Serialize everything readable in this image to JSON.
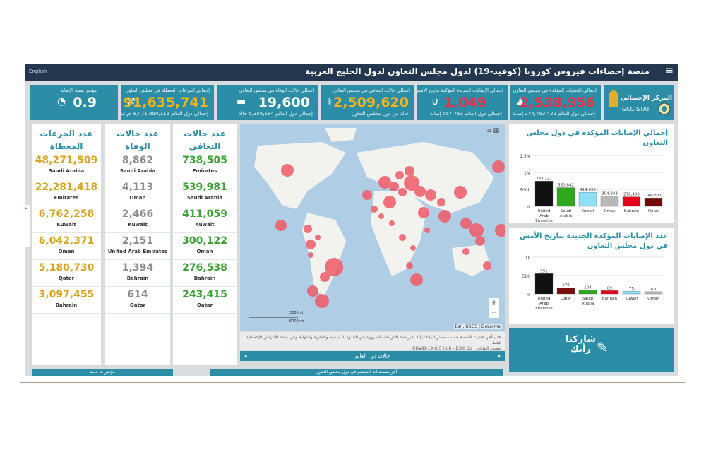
{
  "header": {
    "title": "منصة إحصاءات فيروس كورونا (كوفيد-19) لدول مجلس التعاون لدول الخليج العربية",
    "lang_link": "English"
  },
  "cards": [
    {
      "caption": "إجمالي الإصابات المؤكدة في مجلس التعاون",
      "value": "2,538,956",
      "sub": "إجمالي دول العالم 274,753,422 إصابة",
      "icon": "person-icon",
      "color": "red"
    },
    {
      "caption": "إجمالي الإصابات الجديدة المؤكدة بتاريخ الأمس",
      "value": "1,049",
      "sub": "إجمالي دول العالم 557,763 إصابة",
      "icon": "stethoscope-icon",
      "color": "red"
    },
    {
      "caption": "إجمالي حالات التعافي في مجلس التعاون",
      "value": "2,509,620",
      "sub": "حالة من دول مجلس التعاون",
      "icon": "recovery-icon",
      "color": "gold"
    },
    {
      "caption": "إجمالي حالات الوفاة في مجلس التعاون",
      "value": "19,600",
      "sub": "إجمالي دول العالم 5,356,184 حالة",
      "icon": "bed-icon",
      "color": "white"
    },
    {
      "caption": "إجمالي الجرعات المعطاة في مجلس التعاون",
      "value": "91,635,741",
      "sub": "إجمالي دول العالم 8,471,850,118 جرعة",
      "icon": "syringe-icon",
      "color": "gold"
    },
    {
      "caption": "مؤشر نسبة الإصابة",
      "value": "0.9",
      "sub": "",
      "icon": "gauge-icon",
      "color": "white"
    }
  ],
  "logo": {
    "name_ar": "المركز الإحصائي",
    "name_en": "GCC-STAT"
  },
  "doses": {
    "title": "عدد الجرعات المعطاة",
    "rows": [
      {
        "value": "48,271,509",
        "name": "Saudi Arabia"
      },
      {
        "value": "22,281,418",
        "name": "Emirates"
      },
      {
        "value": "6,762,258",
        "name": "Kuwait"
      },
      {
        "value": "6,042,371",
        "name": "Oman"
      },
      {
        "value": "5,180,730",
        "name": "Qatar"
      },
      {
        "value": "3,097,455",
        "name": "Bahrain"
      }
    ]
  },
  "deaths": {
    "title": "عدد حالات الوفاة",
    "rows": [
      {
        "value": "8,862",
        "name": "Saudi Arabia"
      },
      {
        "value": "4,113",
        "name": "Oman"
      },
      {
        "value": "2,466",
        "name": "Kuwait"
      },
      {
        "value": "2,151",
        "name": "United Arab Emirates"
      },
      {
        "value": "1,394",
        "name": "Bahrain"
      },
      {
        "value": "614",
        "name": "Qatar"
      }
    ]
  },
  "recoveries": {
    "title": "عدد حالات التعافي",
    "rows": [
      {
        "value": "738,505",
        "name": "Emirates"
      },
      {
        "value": "539,981",
        "name": "Saudi Arabia"
      },
      {
        "value": "411,059",
        "name": "Kuwait"
      },
      {
        "value": "300,122",
        "name": "Oman"
      },
      {
        "value": "276,538",
        "name": "Bahrain"
      },
      {
        "value": "243,415",
        "name": "Qatar"
      }
    ]
  },
  "map": {
    "scale_top": "3000mi",
    "scale_bottom": "6000km",
    "attribution": "Esri, USGS | DeLorme",
    "caption_line1": "قد يتأخر تحديث المنصة حسب مصدر البيانات | لا تعبر هذه الخريطة بالضرورة عن الحدود السياسية والإدارية والدولية وهي معدة للأغراض الإحصائية فقط",
    "caption_line2": "مصدر البيانات : COVID-19 GIS Hub - ESRI Co.",
    "nav_label": "حالات دول العالم",
    "zoom_in": "+",
    "zoom_out": "−"
  },
  "bottom_tabs": {
    "left": "مؤشرات عامة",
    "middle": "آخر مستجدات التطعيم في دول مجلس التعاون"
  },
  "share": {
    "label_line1": "شاركنا",
    "label_line2": "رأيك"
  },
  "chart_data": [
    {
      "type": "bar",
      "title": "إجمالي الإصابات المؤكدة في دول مجلس التعاون",
      "categories": [
        "United Arab Emirates",
        "Saudi Arabia",
        "Kuwait",
        "Oman",
        "Bahrain",
        "Qatar"
      ],
      "values": [
        744137,
        550842,
        414098,
        304843,
        278499,
        246537
      ],
      "value_labels": [
        "744,137",
        "550,842",
        "414,098",
        "304,843",
        "278,499",
        "246,537"
      ],
      "ytick_labels": [
        "0",
        "500k",
        "1M",
        "1.5M"
      ],
      "ylim": [
        0,
        1500000
      ],
      "colors": [
        "#111111",
        "#2fa81f",
        "#8fe0f5",
        "#b8b8b8",
        "#e3001b",
        "#6f0b0b"
      ],
      "grid": true
    },
    {
      "type": "bar",
      "title": "عدد الإصابات المؤكدة الجديدة بتاريخ الأمس في دول مجلس التعاون",
      "categories": [
        "United Arab Emirates",
        "Qatar",
        "Saudi Arabia",
        "Bahrain",
        "Kuwait",
        "Oman"
      ],
      "values": [
        551,
        170,
        104,
        89,
        75,
        60
      ],
      "value_labels": [
        "551",
        "170",
        "104",
        "89",
        "75",
        "60"
      ],
      "ytick_labels": [
        "0",
        "500",
        "1k"
      ],
      "ylim": [
        0,
        1000
      ],
      "colors": [
        "#111111",
        "#7a0e0e",
        "#2fa81f",
        "#e3001b",
        "#8fe0f5",
        "#b8b8b8"
      ],
      "grid": true
    }
  ]
}
